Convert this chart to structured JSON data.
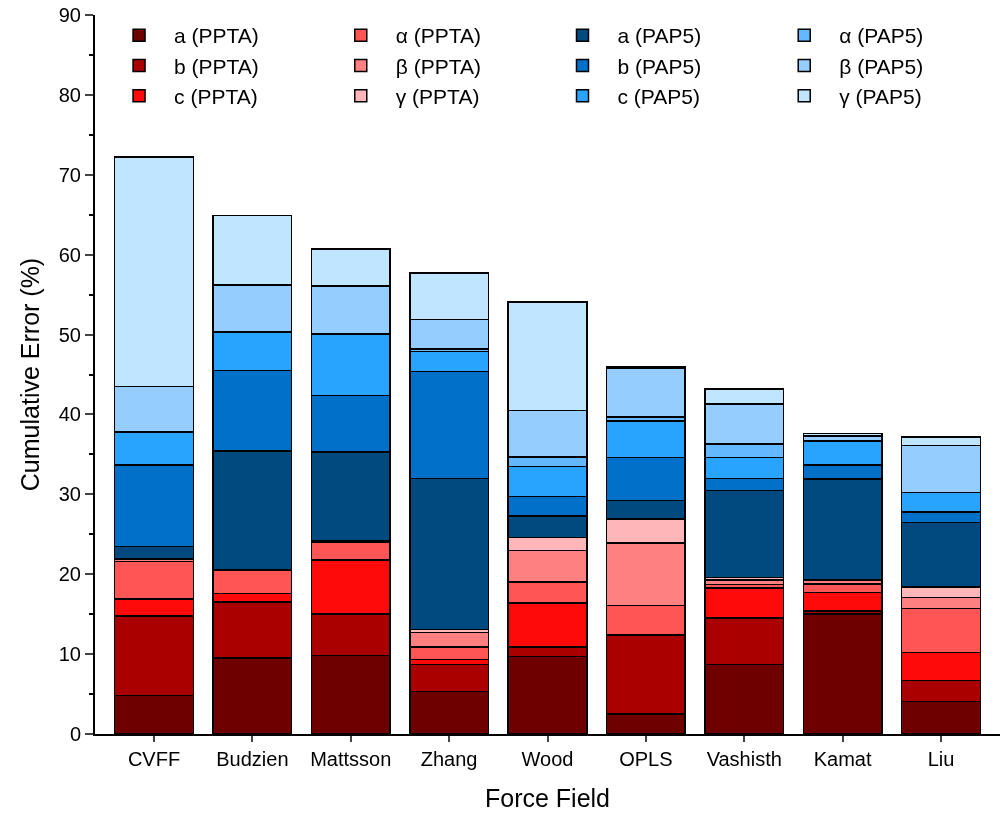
{
  "chart_data": {
    "type": "bar",
    "stacked": true,
    "xlabel": "Force Field",
    "ylabel": "Cumulative Error (%)",
    "categories": [
      "CVFF",
      "Budzien",
      "Mattsson",
      "Zhang",
      "Wood",
      "OPLS",
      "Vashisth",
      "Kamat",
      "Liu"
    ],
    "ylim": [
      0,
      90
    ],
    "yticks": [
      0,
      10,
      20,
      30,
      40,
      50,
      60,
      70,
      80,
      90
    ],
    "grid": false,
    "legend": "top",
    "series": [
      {
        "name": "a (PPTA)",
        "color": "#6e0000",
        "values": [
          4.8,
          9.5,
          9.8,
          5.3,
          9.7,
          2.5,
          8.7,
          15.0,
          4.1
        ]
      },
      {
        "name": "b (PPTA)",
        "color": "#aa0000",
        "values": [
          10.0,
          7.0,
          5.2,
          3.4,
          1.2,
          9.9,
          5.8,
          0.4,
          2.6
        ]
      },
      {
        "name": "c (PPTA)",
        "color": "#ff0a0a",
        "values": [
          2.1,
          1.1,
          6.8,
          0.6,
          5.5,
          0,
          3.8,
          2.3,
          3.5
        ]
      },
      {
        "name": "α (PPTA)",
        "color": "#ff5555",
        "values": [
          4.7,
          2.9,
          2.2,
          1.6,
          2.6,
          3.7,
          0.4,
          1.1,
          5.5
        ]
      },
      {
        "name": "β (PPTA)",
        "color": "#ff8080",
        "values": [
          0.3,
          null,
          0.1,
          1.8,
          4.0,
          7.8,
          0.6,
          0.5,
          1.4
        ]
      },
      {
        "name": "γ (PPTA)",
        "color": "#ffb6b9",
        "values": [
          null,
          null,
          0.1,
          0.4,
          1.6,
          3.0,
          0.3,
          0,
          1.3
        ]
      },
      {
        "name": "a (PAP5)",
        "color": "#004a80",
        "values": [
          1.6,
          14.9,
          11.1,
          18.9,
          2.7,
          2.3,
          10.9,
          12.6,
          8.1
        ]
      },
      {
        "name": "b (PAP5)",
        "color": "#0070c8",
        "values": [
          10.2,
          10.1,
          7.1,
          13.4,
          2.4,
          5.4,
          1.5,
          1.8,
          1.3
        ]
      },
      {
        "name": "c (PAP5)",
        "color": "#28a4ff",
        "values": [
          4.1,
          4.8,
          7.7,
          2.5,
          3.8,
          4.6,
          2.6,
          3.0,
          2.4
        ]
      },
      {
        "name": "α (PAP5)",
        "color": "#64b8ff",
        "values": [
          0,
          0.1,
          0,
          0.3,
          1.2,
          0.5,
          1.7,
          0,
          0
        ]
      },
      {
        "name": "β (PAP5)",
        "color": "#96cdff",
        "values": [
          5.7,
          5.8,
          6.0,
          3.7,
          5.8,
          6.1,
          5.0,
          0.6,
          5.9
        ]
      },
      {
        "name": "γ (PAP5)",
        "color": "#c0e6ff",
        "values": [
          28.7,
          8.7,
          4.6,
          5.8,
          13.6,
          0.2,
          1.9,
          0.3,
          1.1
        ]
      }
    ]
  }
}
